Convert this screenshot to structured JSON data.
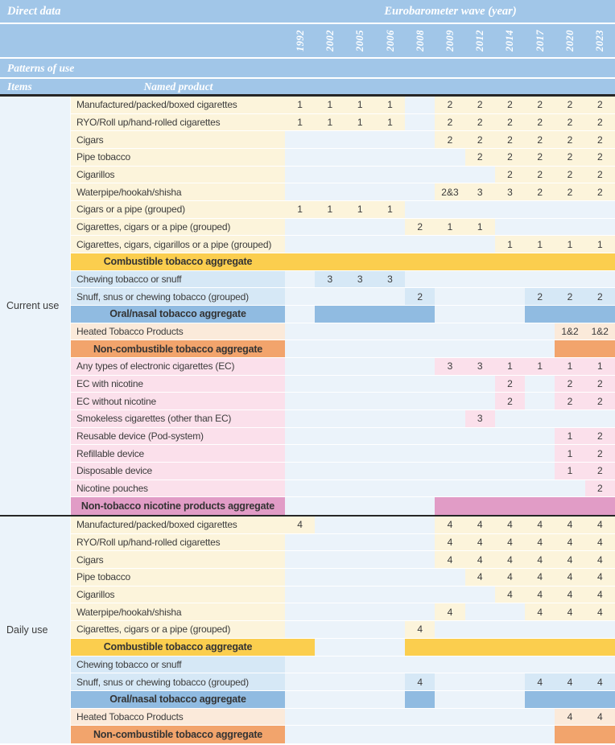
{
  "header": {
    "direct_data": "Direct data",
    "wave_heading": "Eurobarometer wave (year)",
    "years": [
      "1992",
      "2002",
      "2005",
      "2006",
      "2008",
      "2009",
      "2012",
      "2014",
      "2017",
      "2020",
      "2023"
    ],
    "patterns_heading": "Patterns of use",
    "items_heading": "Items",
    "product_heading": "Named product"
  },
  "colors": {
    "header_blue": "#A1C6E8",
    "empty_cell_blue": "#EBF3FA",
    "combustible_cream": "#FCF4DB",
    "oral_blue": "#D6E8F6",
    "heated_peach": "#FBEADA",
    "electronic_pink": "#FBE0EB",
    "band_yellow": "#FBCE4E",
    "band_oral_blue": "#90BBE1",
    "band_orange": "#F2A46C",
    "band_magenta": "#E19CC6",
    "text_dark": "#3B3B3B",
    "divider_dark": "#262626",
    "header_text": "#FFFFFF"
  },
  "sections": [
    {
      "item": "Current use",
      "rows": [
        {
          "type": "product",
          "group": "combustible",
          "label": "Manufactured/packed/boxed cigarettes",
          "values": [
            "1",
            "1",
            "1",
            "1",
            "",
            "2",
            "2",
            "2",
            "2",
            "2",
            "2"
          ]
        },
        {
          "type": "product",
          "group": "combustible",
          "label": "RYO/Roll up/hand-rolled cigarettes",
          "values": [
            "1",
            "1",
            "1",
            "1",
            "",
            "2",
            "2",
            "2",
            "2",
            "2",
            "2"
          ]
        },
        {
          "type": "product",
          "group": "combustible",
          "label": "Cigars",
          "values": [
            "",
            "",
            "",
            "",
            "",
            "2",
            "2",
            "2",
            "2",
            "2",
            "2"
          ]
        },
        {
          "type": "product",
          "group": "combustible",
          "label": "Pipe tobacco",
          "values": [
            "",
            "",
            "",
            "",
            "",
            "",
            "2",
            "2",
            "2",
            "2",
            "2"
          ]
        },
        {
          "type": "product",
          "group": "combustible",
          "label": "Cigarillos",
          "values": [
            "",
            "",
            "",
            "",
            "",
            "",
            "",
            "2",
            "2",
            "2",
            "2"
          ]
        },
        {
          "type": "product",
          "group": "combustible",
          "label": "Waterpipe/hookah/shisha",
          "values": [
            "",
            "",
            "",
            "",
            "",
            "2&3",
            "3",
            "3",
            "2",
            "2",
            "2"
          ]
        },
        {
          "type": "product",
          "group": "combustible",
          "label": "Cigars or a pipe (grouped)",
          "values": [
            "1",
            "1",
            "1",
            "1",
            "",
            "",
            "",
            "",
            "",
            "",
            ""
          ]
        },
        {
          "type": "product",
          "group": "combustible",
          "label": "Cigarettes, cigars or a pipe (grouped)",
          "values": [
            "",
            "",
            "",
            "",
            "2",
            "1",
            "1",
            "",
            "",
            "",
            ""
          ]
        },
        {
          "type": "product",
          "group": "combustible",
          "label": "Cigarettes, cigars, cigarillos or a pipe (grouped)",
          "values": [
            "",
            "",
            "",
            "",
            "",
            "",
            "",
            "1",
            "1",
            "1",
            "1"
          ]
        },
        {
          "type": "aggregate",
          "band": "combustible",
          "label": "Combustible tobacco aggregate",
          "covered": [
            1,
            1,
            1,
            1,
            1,
            1,
            1,
            1,
            1,
            1,
            1
          ]
        },
        {
          "type": "product",
          "group": "oral",
          "label": "Chewing tobacco or snuff",
          "values": [
            "",
            "3",
            "3",
            "3",
            "",
            "",
            "",
            "",
            "",
            "",
            ""
          ]
        },
        {
          "type": "product",
          "group": "oral",
          "label": "Snuff, snus or chewing tobacco (grouped)",
          "values": [
            "",
            "",
            "",
            "",
            "2",
            "",
            "",
            "",
            "2",
            "2",
            "2"
          ]
        },
        {
          "type": "aggregate",
          "band": "oral",
          "label": "Oral/nasal tobacco aggregate",
          "covered": [
            0,
            1,
            1,
            1,
            1,
            0,
            0,
            0,
            1,
            1,
            1
          ]
        },
        {
          "type": "product",
          "group": "heated",
          "label": "Heated Tobacco Products",
          "values": [
            "",
            "",
            "",
            "",
            "",
            "",
            "",
            "",
            "",
            "1&2",
            "1&2"
          ]
        },
        {
          "type": "aggregate",
          "band": "noncombustible",
          "label": "Non-combustible tobacco aggregate",
          "covered": [
            0,
            0,
            0,
            0,
            0,
            0,
            0,
            0,
            0,
            1,
            1
          ]
        },
        {
          "type": "product",
          "group": "electronic",
          "label": "Any types of electronic cigarettes (EC)",
          "values": [
            "",
            "",
            "",
            "",
            "",
            "3",
            "3",
            "1",
            "1",
            "1",
            "1"
          ]
        },
        {
          "type": "product",
          "group": "electronic",
          "label": "EC with nicotine",
          "values": [
            "",
            "",
            "",
            "",
            "",
            "",
            "",
            "2",
            "",
            "2",
            "2"
          ]
        },
        {
          "type": "product",
          "group": "electronic",
          "label": "EC without nicotine",
          "values": [
            "",
            "",
            "",
            "",
            "",
            "",
            "",
            "2",
            "",
            "2",
            "2"
          ]
        },
        {
          "type": "product",
          "group": "electronic",
          "label": "Smokeless cigarettes (other than EC)",
          "values": [
            "",
            "",
            "",
            "",
            "",
            "",
            "3",
            "",
            "",
            "",
            ""
          ]
        },
        {
          "type": "product",
          "group": "electronic",
          "label": "Reusable device (Pod-system)",
          "values": [
            "",
            "",
            "",
            "",
            "",
            "",
            "",
            "",
            "",
            "1",
            "2"
          ]
        },
        {
          "type": "product",
          "group": "electronic",
          "label": "Refillable device",
          "values": [
            "",
            "",
            "",
            "",
            "",
            "",
            "",
            "",
            "",
            "1",
            "2"
          ]
        },
        {
          "type": "product",
          "group": "electronic",
          "label": "Disposable device",
          "values": [
            "",
            "",
            "",
            "",
            "",
            "",
            "",
            "",
            "",
            "1",
            "2"
          ]
        },
        {
          "type": "product",
          "group": "electronic",
          "label": "Nicotine pouches",
          "values": [
            "",
            "",
            "",
            "",
            "",
            "",
            "",
            "",
            "",
            "",
            "2"
          ]
        },
        {
          "type": "aggregate",
          "band": "nontobacco",
          "label": "Non-tobacco nicotine products aggregate",
          "covered": [
            0,
            0,
            0,
            0,
            0,
            1,
            1,
            1,
            1,
            1,
            1
          ]
        }
      ]
    },
    {
      "item": "Daily use",
      "rows": [
        {
          "type": "product",
          "group": "combustible",
          "label": "Manufactured/packed/boxed cigarettes",
          "values": [
            "4",
            "",
            "",
            "",
            "",
            "4",
            "4",
            "4",
            "4",
            "4",
            "4"
          ]
        },
        {
          "type": "product",
          "group": "combustible",
          "label": "RYO/Roll up/hand-rolled cigarettes",
          "values": [
            "",
            "",
            "",
            "",
            "",
            "4",
            "4",
            "4",
            "4",
            "4",
            "4"
          ]
        },
        {
          "type": "product",
          "group": "combustible",
          "label": "Cigars",
          "values": [
            "",
            "",
            "",
            "",
            "",
            "4",
            "4",
            "4",
            "4",
            "4",
            "4"
          ]
        },
        {
          "type": "product",
          "group": "combustible",
          "label": "Pipe tobacco",
          "values": [
            "",
            "",
            "",
            "",
            "",
            "",
            "4",
            "4",
            "4",
            "4",
            "4"
          ]
        },
        {
          "type": "product",
          "group": "combustible",
          "label": "Cigarillos",
          "values": [
            "",
            "",
            "",
            "",
            "",
            "",
            "",
            "4",
            "4",
            "4",
            "4"
          ]
        },
        {
          "type": "product",
          "group": "combustible",
          "label": "Waterpipe/hookah/shisha",
          "values": [
            "",
            "",
            "",
            "",
            "",
            "4",
            "",
            "",
            "4",
            "4",
            "4"
          ]
        },
        {
          "type": "product",
          "group": "combustible",
          "label": "Cigarettes, cigars or a pipe (grouped)",
          "values": [
            "",
            "",
            "",
            "",
            "4",
            "",
            "",
            "",
            "",
            "",
            ""
          ]
        },
        {
          "type": "aggregate",
          "band": "combustible",
          "label": "Combustible tobacco aggregate",
          "covered": [
            1,
            0,
            0,
            0,
            1,
            1,
            1,
            1,
            1,
            1,
            1
          ]
        },
        {
          "type": "product",
          "group": "oral",
          "label": "Chewing tobacco or snuff",
          "values": [
            "",
            "",
            "",
            "",
            "",
            "",
            "",
            "",
            "",
            "",
            ""
          ]
        },
        {
          "type": "product",
          "group": "oral",
          "label": "Snuff, snus or chewing tobacco (grouped)",
          "values": [
            "",
            "",
            "",
            "",
            "4",
            "",
            "",
            "",
            "4",
            "4",
            "4"
          ]
        },
        {
          "type": "aggregate",
          "band": "oral",
          "label": "Oral/nasal tobacco aggregate",
          "covered": [
            0,
            0,
            0,
            0,
            1,
            0,
            0,
            0,
            1,
            1,
            1
          ]
        },
        {
          "type": "product",
          "group": "heated",
          "label": "Heated Tobacco Products",
          "values": [
            "",
            "",
            "",
            "",
            "",
            "",
            "",
            "",
            "",
            "4",
            "4"
          ]
        },
        {
          "type": "aggregate",
          "band": "noncombustible",
          "label": "Non-combustible tobacco aggregate",
          "covered": [
            0,
            0,
            0,
            0,
            0,
            0,
            0,
            0,
            0,
            1,
            1
          ]
        }
      ]
    }
  ]
}
